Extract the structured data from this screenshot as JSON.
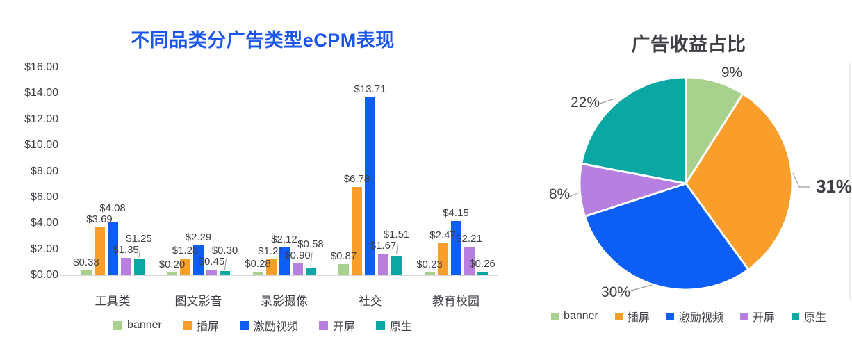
{
  "chart_data": [
    {
      "type": "bar",
      "title": "不同品类分广告类型eCPM表现",
      "title_color": "#1b55f0",
      "categories": [
        "工具类",
        "图文影音",
        "录影摄像",
        "社交",
        "教育校园"
      ],
      "series": [
        {
          "name": "banner",
          "color": "#a9d18e",
          "values": [
            0.38,
            0.2,
            0.28,
            0.87,
            0.23
          ]
        },
        {
          "name": "插屏",
          "color": "#f99e2b",
          "values": [
            3.69,
            1.28,
            1.21,
            6.78,
            2.47
          ]
        },
        {
          "name": "激励视频",
          "color": "#0d5ef5",
          "values": [
            4.08,
            2.29,
            2.12,
            13.71,
            4.15
          ]
        },
        {
          "name": "开屏",
          "color": "#b77fe0",
          "values": [
            1.35,
            0.45,
            0.9,
            1.67,
            2.21
          ]
        },
        {
          "name": "原生",
          "color": "#0ba7a3",
          "values": [
            1.25,
            0.3,
            0.58,
            1.51,
            0.26
          ]
        }
      ],
      "ylabel": "",
      "ylim": [
        0,
        16
      ],
      "ytick_step": 2,
      "ytick_labels": [
        "$16.00",
        "$14.00",
        "$12.00",
        "$10.00",
        "$8.00",
        "$6.00",
        "$4.00",
        "$2.00",
        "$0.00"
      ],
      "value_prefix": "$",
      "data_labels": true,
      "grid": false,
      "legend_position": "bottom"
    },
    {
      "type": "pie",
      "title": "广告收益占比",
      "title_color": "#3f4045",
      "start_angle_deg": -90,
      "direction": "clockwise",
      "slices": [
        {
          "name": "banner",
          "color": "#a9d18e",
          "value": 9,
          "label": "9%"
        },
        {
          "name": "插屏",
          "color": "#f99e2b",
          "value": 31,
          "label": "31%",
          "emphasis": true
        },
        {
          "name": "激励视频",
          "color": "#0d5ef5",
          "value": 30,
          "label": "30%"
        },
        {
          "name": "开屏",
          "color": "#b77fe0",
          "value": 8,
          "label": "8%"
        },
        {
          "name": "原生",
          "color": "#0ba7a3",
          "value": 22,
          "label": "22%"
        }
      ],
      "emphasis_color": "#f99e2b",
      "legend_position": "bottom"
    }
  ]
}
